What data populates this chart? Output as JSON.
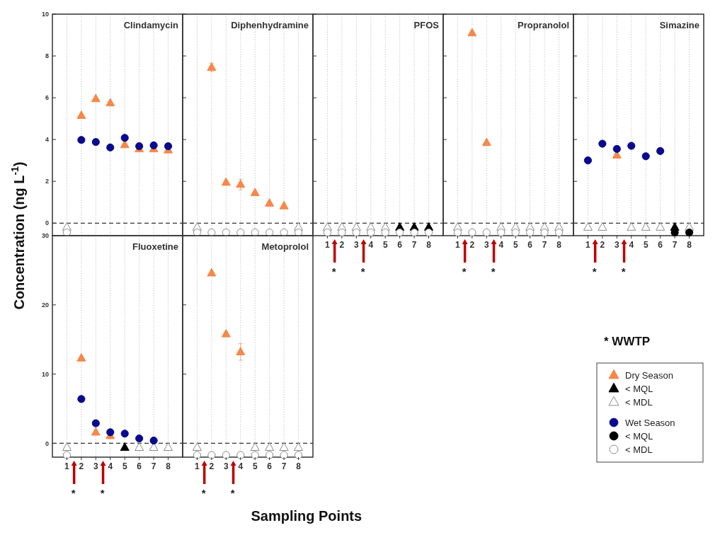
{
  "chart_data": [
    {
      "type": "scatter",
      "title": "Clindamycin",
      "ylabel": "Concentration (ng L$^{-1}$)",
      "categories": [
        "1",
        "2",
        "3",
        "4",
        "5",
        "6",
        "7",
        "8"
      ],
      "ylim": [
        -0.6,
        10
      ],
      "yticks": [
        0,
        2,
        4,
        6,
        8,
        10
      ],
      "tick_labels": "y",
      "grid": "x",
      "ref_lines": [
        {
          "axis": "y",
          "value": 0,
          "line_style": "dashed",
          "color": "#333333"
        }
      ],
      "series": [
        {
          "color": "#f5884a",
          "marker": "triangle",
          "values": [
            null,
            5.15,
            5.95,
            5.75,
            3.75,
            3.55,
            3.55,
            3.5
          ]
        },
        {
          "color": "#ffffff",
          "marker": "triangle",
          "values": [
            -0.2,
            null,
            null,
            null,
            null,
            null,
            null,
            null
          ]
        },
        {
          "color": "#0a0a8c",
          "marker": "circle",
          "values": [
            null,
            3.98,
            3.88,
            3.62,
            4.08,
            3.68,
            3.72,
            3.68
          ]
        },
        {
          "color": "#ffffff",
          "marker": "circle",
          "values": [
            -0.45,
            null,
            null,
            null,
            null,
            null,
            null,
            null
          ]
        }
      ]
    },
    {
      "type": "scatter",
      "title": "Diphenhydramine",
      "categories": [
        "1",
        "2",
        "3",
        "4",
        "5",
        "6",
        "7",
        "8"
      ],
      "ylim": [
        -0.6,
        10
      ],
      "yticks": [
        0,
        2,
        4,
        6,
        8,
        10
      ],
      "tick_labels": false,
      "grid": "x",
      "ref_lines": [
        {
          "axis": "y",
          "value": 0,
          "line_style": "dashed",
          "color": "#333333"
        }
      ],
      "series": [
        {
          "color": "#f5884a",
          "marker": "triangle",
          "values": [
            null,
            7.45,
            1.95,
            1.85,
            1.45,
            0.95,
            0.82,
            null
          ],
          "errors": [
            null,
            0.2,
            null,
            0.25,
            null,
            null,
            null,
            null
          ]
        },
        {
          "color": "#ffffff",
          "marker": "triangle",
          "values": [
            -0.2,
            null,
            null,
            null,
            null,
            null,
            null,
            -0.2
          ]
        },
        {
          "color": "#ffffff",
          "marker": "circle",
          "values": [
            -0.45,
            -0.45,
            -0.45,
            -0.45,
            -0.45,
            -0.45,
            -0.45,
            -0.45
          ]
        }
      ]
    },
    {
      "type": "scatter",
      "title": "PFOS",
      "categories": [
        "1",
        "2",
        "3",
        "4",
        "5",
        "6",
        "7",
        "8"
      ],
      "ylim": [
        -0.6,
        10
      ],
      "yticks": [
        0,
        2,
        4,
        6,
        8,
        10
      ],
      "tick_labels": "x",
      "grid": "x",
      "annotations": [
        "*",
        "*"
      ],
      "ref_lines": [
        {
          "axis": "y",
          "value": 0,
          "line_style": "dashed",
          "color": "#333333"
        }
      ],
      "series": [
        {
          "color": "#000000",
          "marker": "triangle",
          "values": [
            null,
            null,
            null,
            null,
            null,
            -0.2,
            -0.2,
            -0.2
          ]
        },
        {
          "color": "#ffffff",
          "marker": "triangle",
          "values": [
            -0.2,
            -0.2,
            -0.2,
            -0.2,
            -0.2,
            null,
            null,
            null
          ]
        },
        {
          "color": "#ffffff",
          "marker": "circle",
          "values": [
            -0.45,
            -0.45,
            -0.45,
            -0.45,
            -0.45,
            -0.45,
            -0.45,
            -0.45
          ]
        }
      ]
    },
    {
      "type": "scatter",
      "title": "Propranolol",
      "categories": [
        "1",
        "2",
        "3",
        "4",
        "5",
        "6",
        "7",
        "8"
      ],
      "ylim": [
        -0.6,
        10
      ],
      "yticks": [
        0,
        2,
        4,
        6,
        8,
        10
      ],
      "tick_labels": "x",
      "grid": "x",
      "annotations": [
        "*",
        "*"
      ],
      "ref_lines": [
        {
          "axis": "y",
          "value": 0,
          "line_style": "dashed",
          "color": "#333333"
        }
      ],
      "series": [
        {
          "color": "#f5884a",
          "marker": "triangle",
          "values": [
            null,
            9.1,
            3.85,
            null,
            null,
            null,
            null,
            null
          ]
        },
        {
          "color": "#ffffff",
          "marker": "triangle",
          "values": [
            -0.2,
            null,
            null,
            -0.2,
            -0.2,
            -0.2,
            -0.2,
            -0.2
          ]
        },
        {
          "color": "#ffffff",
          "marker": "circle",
          "values": [
            -0.45,
            -0.45,
            -0.45,
            -0.45,
            -0.45,
            -0.45,
            -0.45,
            -0.45
          ]
        }
      ]
    },
    {
      "type": "scatter",
      "title": "Simazine",
      "categories": [
        "1",
        "2",
        "3",
        "4",
        "5",
        "6",
        "7",
        "8"
      ],
      "ylim": [
        -0.6,
        10
      ],
      "yticks": [
        0,
        2,
        4,
        6,
        8,
        10
      ],
      "tick_labels": "x",
      "grid": "x",
      "annotations": [
        "*",
        "*"
      ],
      "ref_lines": [
        {
          "axis": "y",
          "value": 0,
          "line_style": "dashed",
          "color": "#333333"
        }
      ],
      "series": [
        {
          "color": "#f5884a",
          "marker": "triangle",
          "values": [
            null,
            null,
            3.25,
            null,
            null,
            null,
            null,
            null
          ]
        },
        {
          "color": "#000000",
          "marker": "triangle",
          "values": [
            null,
            null,
            null,
            null,
            null,
            null,
            -0.2,
            null
          ]
        },
        {
          "color": "#ffffff",
          "marker": "triangle",
          "values": [
            -0.2,
            -0.2,
            null,
            -0.2,
            -0.2,
            -0.2,
            null,
            -0.2
          ]
        },
        {
          "color": "#0a0a8c",
          "marker": "circle",
          "values": [
            3.0,
            3.8,
            3.55,
            3.7,
            3.2,
            3.45,
            null,
            null
          ]
        },
        {
          "color": "#000000",
          "marker": "circle",
          "values": [
            null,
            null,
            null,
            null,
            null,
            null,
            -0.45,
            -0.45
          ]
        }
      ]
    },
    {
      "type": "scatter",
      "title": "Fluoxetine",
      "categories": [
        "1",
        "2",
        "3",
        "4",
        "5",
        "6",
        "7",
        "8"
      ],
      "ylim": [
        -2,
        30
      ],
      "yticks": [
        0,
        10,
        20,
        30
      ],
      "grid": "x",
      "annotations": [
        "*",
        "*"
      ],
      "ref_lines": [
        {
          "axis": "y",
          "value": 0,
          "line_style": "dashed",
          "color": "#333333"
        }
      ],
      "series": [
        {
          "color": "#f5884a",
          "marker": "triangle",
          "values": [
            null,
            12.3,
            1.6,
            1.1,
            null,
            null,
            null,
            null
          ]
        },
        {
          "color": "#000000",
          "marker": "triangle",
          "values": [
            null,
            null,
            null,
            null,
            -0.6,
            null,
            null,
            null
          ]
        },
        {
          "color": "#ffffff",
          "marker": "triangle",
          "values": [
            -0.6,
            null,
            null,
            null,
            null,
            -0.6,
            -0.6,
            -0.6
          ]
        },
        {
          "color": "#0a0a8c",
          "marker": "circle",
          "values": [
            null,
            6.4,
            2.9,
            1.6,
            1.4,
            0.7,
            0.4,
            null
          ]
        },
        {
          "color": "#ffffff",
          "marker": "circle",
          "values": [
            -1.7,
            null,
            null,
            null,
            null,
            null,
            null,
            null
          ]
        }
      ]
    },
    {
      "type": "scatter",
      "title": "Metoprolol",
      "xlabel": "Sampling Points",
      "categories": [
        "1",
        "2",
        "3",
        "4",
        "5",
        "6",
        "7",
        "8"
      ],
      "ylim": [
        -2,
        30
      ],
      "yticks": [
        0,
        10,
        20,
        30
      ],
      "tick_labels": "x",
      "grid": "x",
      "legend": "right",
      "annotations": [
        "*",
        "*",
        "* WWTP"
      ],
      "ref_lines": [
        {
          "axis": "y",
          "value": 0,
          "line_style": "dashed",
          "color": "#333333"
        }
      ],
      "series": [
        {
          "name": "Dry Season",
          "color": "#f5884a",
          "marker": "triangle",
          "values": [
            null,
            24.6,
            15.8,
            13.2,
            null,
            null,
            null,
            null
          ],
          "errors": [
            null,
            null,
            null,
            1.2,
            null,
            null,
            null,
            null
          ]
        },
        {
          "name": "< MQL",
          "color": "#000000",
          "marker": "triangle",
          "values": [
            null,
            null,
            null,
            null,
            null,
            null,
            null,
            null
          ]
        },
        {
          "name": "< MDL",
          "color": "#ffffff",
          "marker": "triangle",
          "values": [
            -0.6,
            null,
            null,
            null,
            -0.6,
            -0.6,
            -0.6,
            -0.6
          ]
        },
        {
          "name": "Wet Season",
          "color": "#0a0a8c",
          "marker": "circle",
          "values": [
            null,
            null,
            null,
            null,
            null,
            null,
            null,
            null
          ]
        },
        {
          "name": "< MQL",
          "color": "#000000",
          "marker": "circle",
          "values": [
            null,
            null,
            null,
            null,
            null,
            null,
            null,
            null
          ]
        },
        {
          "name": "< MDL",
          "color": "#ffffff",
          "marker": "circle",
          "values": [
            -1.7,
            -1.7,
            -1.7,
            -1.7,
            -1.7,
            -1.7,
            -1.7,
            -1.7
          ]
        }
      ]
    }
  ]
}
